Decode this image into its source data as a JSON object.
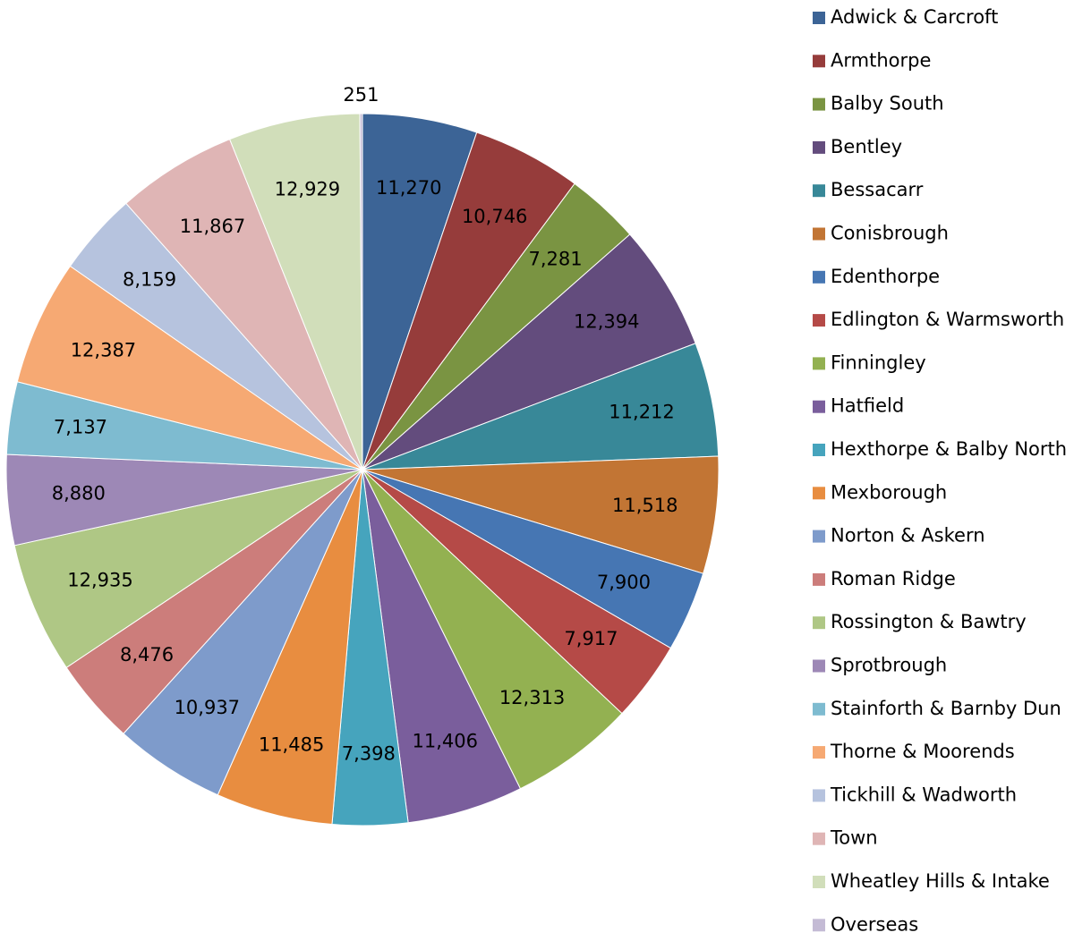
{
  "chart_data": {
    "type": "pie",
    "categories": [
      "Adwick & Carcroft",
      "Armthorpe",
      "Balby South",
      "Bentley",
      "Bessacarr",
      "Conisbrough",
      "Edenthorpe",
      "Edlington & Warmsworth",
      "Finningley",
      "Hatfield",
      "Hexthorpe & Balby North",
      "Mexborough",
      "Norton & Askern",
      "Roman Ridge",
      "Rossington & Bawtry",
      "Sprotbrough",
      "Stainforth & Barnby Dun",
      "Thorne & Moorends",
      "Tickhill & Wadworth",
      "Town",
      "Wheatley Hills & Intake",
      "Overseas"
    ],
    "values": [
      11270,
      10746,
      7281,
      12394,
      11212,
      11518,
      7900,
      7917,
      12313,
      11406,
      7398,
      11485,
      10937,
      8476,
      12935,
      8880,
      7137,
      12387,
      8159,
      11867,
      12929,
      251
    ],
    "value_labels": [
      "11,270",
      "10,746",
      "7,281",
      "12,394",
      "11,212",
      "11,518",
      "7,900",
      "7,917",
      "12,313",
      "11,406",
      "7,398",
      "11,485",
      "10,937",
      "8,476",
      "12,935",
      "8,880",
      "7,137",
      "12,387",
      "8,159",
      "11,867",
      "12,929",
      "251"
    ],
    "colors": [
      "#3c6496",
      "#963c3b",
      "#7a9442",
      "#634c7d",
      "#388898",
      "#c27534",
      "#4676b3",
      "#b54a47",
      "#93b151",
      "#7a5e9c",
      "#46a4bd",
      "#e88d40",
      "#7e9bcb",
      "#cc7d7b",
      "#afc785",
      "#9d88b6",
      "#7ebbd0",
      "#f6a973",
      "#b6c3de",
      "#dfb5b5",
      "#d1deba",
      "#c4bbd5"
    ],
    "legend": "right"
  }
}
